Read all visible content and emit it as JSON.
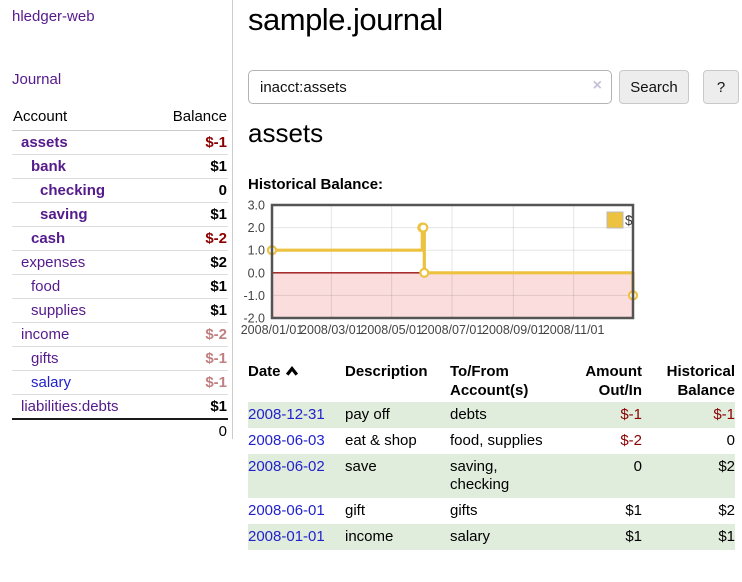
{
  "sidebar": {
    "brand": "hledger-web",
    "journal_link": "Journal",
    "accounts": {
      "col_account": "Account",
      "col_balance": "Balance",
      "rows": [
        {
          "name": "assets",
          "balance": "$-1"
        },
        {
          "name": "bank",
          "balance": "$1"
        },
        {
          "name": "checking",
          "balance": "0"
        },
        {
          "name": "saving",
          "balance": "$1"
        },
        {
          "name": "cash",
          "balance": "$-2"
        },
        {
          "name": "expenses",
          "balance": "$2"
        },
        {
          "name": "food",
          "balance": "$1"
        },
        {
          "name": "supplies",
          "balance": "$1"
        },
        {
          "name": "income",
          "balance": "$-2"
        },
        {
          "name": "gifts",
          "balance": "$-1"
        },
        {
          "name": "salary",
          "balance": "$-1"
        },
        {
          "name": "liabilities:debts",
          "balance": "$1"
        }
      ],
      "total": "0"
    }
  },
  "main": {
    "title": "sample.journal",
    "search": {
      "value": "inacct:assets",
      "clear_icon": "×",
      "search_button": "Search",
      "help_button": "?"
    },
    "account_heading": "assets",
    "section_label": "Historical Balance:"
  },
  "chart_data": {
    "type": "line",
    "title": "Historical Balance",
    "legend": [
      {
        "label": "$",
        "color": "#edc240"
      }
    ],
    "legend_position": "top-right",
    "x_range": [
      "2008-01-01",
      "2008-12-31"
    ],
    "x_tick_dates": [
      "2008-01-01",
      "2008-03-01",
      "2008-05-01",
      "2008-07-01",
      "2008-09-01",
      "2008-11-01"
    ],
    "x_tick_labels": [
      "2008/01/01",
      "2008/03/01",
      "2008/05/01",
      "2008/07/01",
      "2008/09/01",
      "2008/11/01"
    ],
    "y_ticks": [
      "3.0",
      "2.0",
      "1.0",
      "0.0",
      "-1.0",
      "-2.0"
    ],
    "ylim": [
      -2,
      3
    ],
    "grid": true,
    "series": [
      {
        "name": "$",
        "color": "#edc240",
        "step": true,
        "points": [
          {
            "date": "2008-01-01",
            "value": 1
          },
          {
            "date": "2008-06-01",
            "value": 2
          },
          {
            "date": "2008-06-02",
            "value": 2
          },
          {
            "date": "2008-06-03",
            "value": 0
          },
          {
            "date": "2008-12-31",
            "value": -1
          }
        ]
      }
    ],
    "negative_region_shaded": true
  },
  "transactions": {
    "headers": {
      "date": {
        "l1": "Date",
        "l2": ""
      },
      "description": {
        "l1": "Description",
        "l2": ""
      },
      "accounts": {
        "l1": "To/From",
        "l2": "Account(s)"
      },
      "amount": {
        "l1": "Amount",
        "l2": "Out/In"
      },
      "balance": {
        "l1": "Historical",
        "l2": "Balance"
      }
    },
    "rows": [
      {
        "date": "2008-12-31",
        "description": "pay off",
        "accounts": "debts",
        "amount": "$-1",
        "balance": "$-1"
      },
      {
        "date": "2008-06-03",
        "description": "eat & shop",
        "accounts": "food, supplies",
        "amount": "$-2",
        "balance": "0"
      },
      {
        "date": "2008-06-02",
        "description": "save",
        "accounts": "saving,\nchecking",
        "amount": "0",
        "balance": "$2"
      },
      {
        "date": "2008-06-01",
        "description": "gift",
        "accounts": "gifts",
        "amount": "$1",
        "balance": "$2"
      },
      {
        "date": "2008-01-01",
        "description": "income",
        "accounts": "salary",
        "amount": "$1",
        "balance": "$1"
      }
    ]
  },
  "colors": {
    "link_purple": "#551A8B",
    "link_blue": "#2222CC",
    "negative_strong": "#8B0000",
    "negative_soft": "#C08080",
    "stripe_green": "#e0ecdc",
    "chart_line": "#edc240",
    "chart_negative_fill": "#fbdddd",
    "chart_zero_line": "#991111",
    "chart_border": "#545454"
  }
}
